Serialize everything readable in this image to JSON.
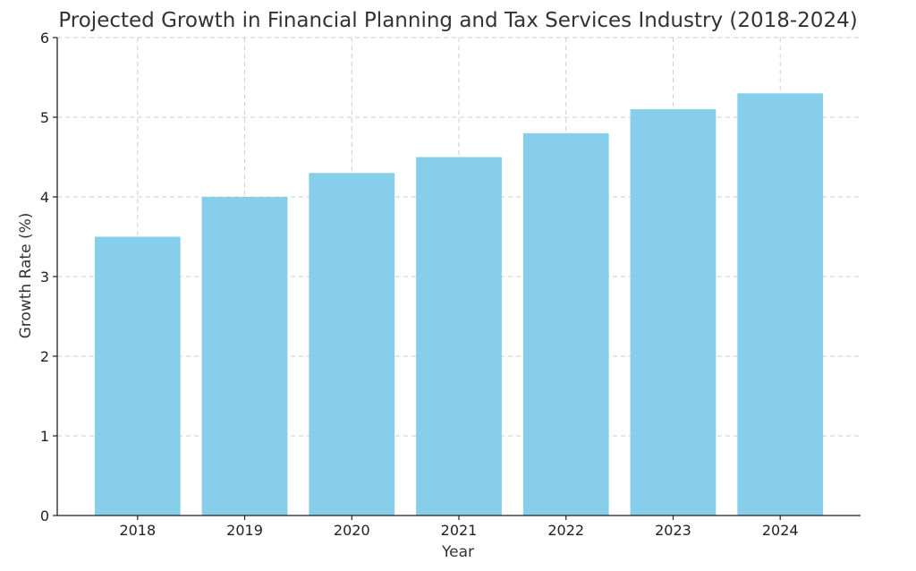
{
  "chart_data": {
    "type": "bar",
    "title": "Projected Growth in Financial Planning and Tax Services Industry (2018-2024)",
    "xlabel": "Year",
    "ylabel": "Growth Rate (%)",
    "categories": [
      "2018",
      "2019",
      "2020",
      "2021",
      "2022",
      "2023",
      "2024"
    ],
    "values": [
      3.5,
      4.0,
      4.3,
      4.5,
      4.8,
      5.1,
      5.3
    ],
    "ylim": [
      0,
      6
    ],
    "yticks": [
      "0",
      "1",
      "2",
      "3",
      "4",
      "5",
      "6"
    ],
    "grid": true,
    "bar_color": "#87CEEB"
  }
}
